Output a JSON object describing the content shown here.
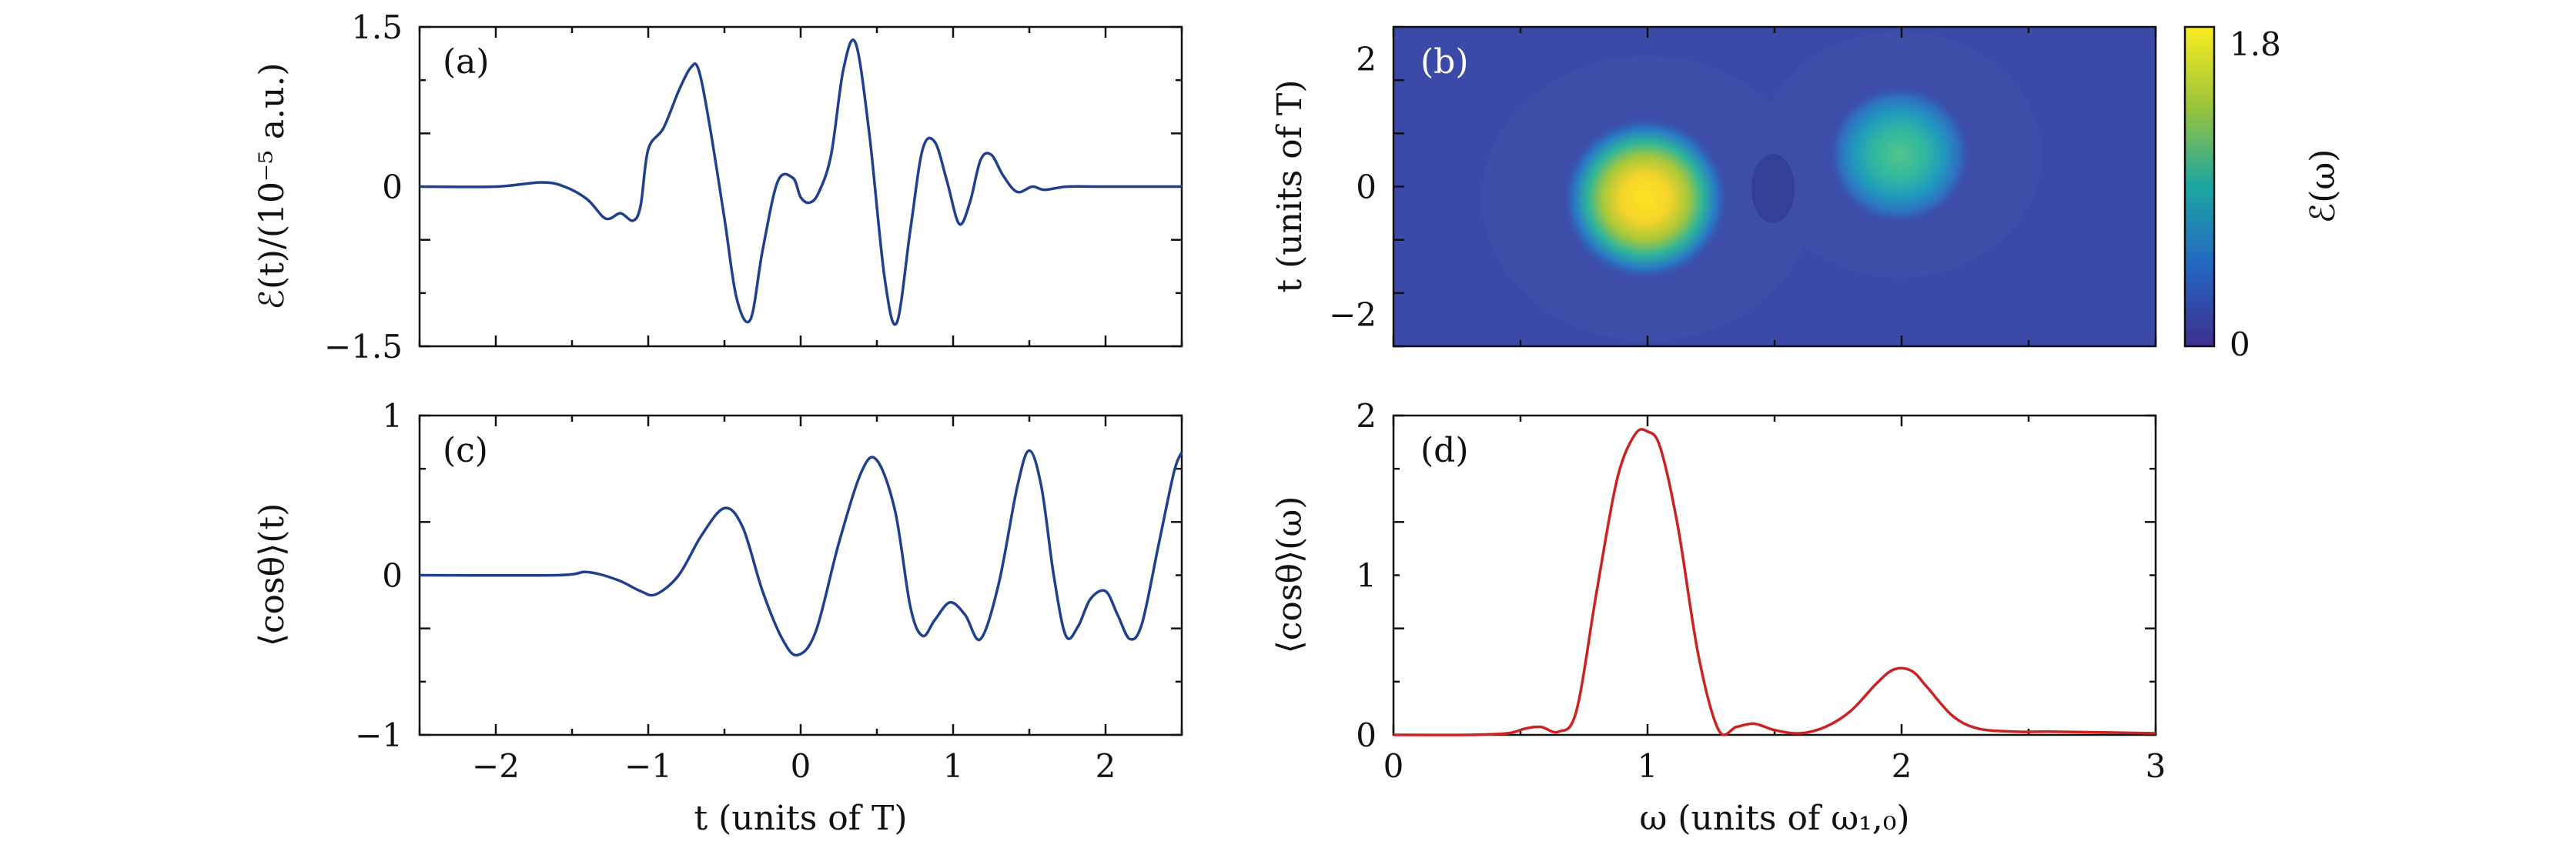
{
  "chart_data": [
    {
      "panel_label": "(a)",
      "type": "line",
      "xlabel": "",
      "ylabel": "ℰ(t)/(10⁻⁵ a.u.)",
      "xlim": [
        -2.5,
        2.5
      ],
      "ylim": [
        -1.5,
        1.5
      ],
      "yticks": [
        {
          "value": -1.5,
          "label": "−1.5"
        },
        {
          "value": 0,
          "label": "0"
        },
        {
          "value": 1.5,
          "label": "1.5"
        }
      ],
      "xticks": [],
      "color": "#1f3f8f",
      "series": [
        {
          "x": [
            -2.5,
            -2.0,
            -1.7,
            -1.55,
            -1.4,
            -1.3,
            -1.25,
            -1.18,
            -1.1,
            -1.05,
            -1.0,
            -0.9,
            -0.8,
            -0.72,
            -0.67,
            -0.6,
            -0.5,
            -0.42,
            -0.33,
            -0.25,
            -0.15,
            -0.05,
            0.0,
            0.06,
            0.12,
            0.2,
            0.28,
            0.36,
            0.45,
            0.55,
            0.63,
            0.72,
            0.8,
            0.88,
            0.96,
            1.04,
            1.11,
            1.18,
            1.25,
            1.33,
            1.42,
            1.52,
            1.6,
            1.75,
            2.0,
            2.5
          ],
          "y": [
            0.0,
            0.0,
            0.04,
            0.0,
            -0.12,
            -0.28,
            -0.3,
            -0.25,
            -0.32,
            -0.18,
            0.35,
            0.55,
            0.9,
            1.12,
            1.1,
            0.6,
            -0.3,
            -1.05,
            -1.25,
            -0.6,
            0.05,
            0.08,
            -0.1,
            -0.15,
            -0.05,
            0.3,
            1.1,
            1.35,
            0.5,
            -0.85,
            -1.28,
            -0.4,
            0.35,
            0.42,
            0.05,
            -0.35,
            -0.15,
            0.25,
            0.3,
            0.1,
            -0.05,
            0.0,
            -0.03,
            0.0,
            0.0,
            0.0
          ]
        }
      ]
    },
    {
      "panel_label": "(b)",
      "type": "heatmap",
      "xlabel": "",
      "ylabel": "t (units of T)",
      "xlim": [
        0,
        3
      ],
      "ylim": [
        -2.5,
        2.5
      ],
      "yticks": [
        {
          "value": -2,
          "label": "−2"
        },
        {
          "value": 0,
          "label": "0"
        },
        {
          "value": 2,
          "label": "2"
        }
      ],
      "colorbar": {
        "label": "ℰ(ω)",
        "min_label": "0",
        "max_label": "1.8",
        "min": 0,
        "max": 1.8
      },
      "blobs": [
        {
          "omega": 1.0,
          "t": -0.2,
          "peak": 1.7
        },
        {
          "omega": 2.0,
          "t": 0.4,
          "peak": 0.95
        }
      ]
    },
    {
      "panel_label": "(c)",
      "type": "line",
      "xlabel": "t (units of T)",
      "ylabel": "⟨cosθ⟩(t)",
      "xlim": [
        -2.5,
        2.5
      ],
      "ylim": [
        -1,
        1
      ],
      "yticks": [
        {
          "value": -1,
          "label": "−1"
        },
        {
          "value": 0,
          "label": "0"
        },
        {
          "value": 1,
          "label": "1"
        }
      ],
      "xticks": [
        {
          "value": -2,
          "label": "−2"
        },
        {
          "value": -1,
          "label": "−1"
        },
        {
          "value": 0,
          "label": "0"
        },
        {
          "value": 1,
          "label": "1"
        },
        {
          "value": 2,
          "label": "2"
        }
      ],
      "color": "#1f3f8f",
      "series": [
        {
          "x": [
            -2.5,
            -1.6,
            -1.4,
            -1.2,
            -1.05,
            -0.95,
            -0.8,
            -0.65,
            -0.5,
            -0.38,
            -0.25,
            -0.12,
            -0.02,
            0.1,
            0.25,
            0.4,
            0.5,
            0.62,
            0.72,
            0.8,
            0.88,
            0.98,
            1.08,
            1.18,
            1.3,
            1.42,
            1.5,
            1.58,
            1.66,
            1.74,
            1.82,
            1.9,
            2.0,
            2.08,
            2.16,
            2.24,
            2.35,
            2.45,
            2.5
          ],
          "y": [
            0.0,
            0.0,
            0.02,
            -0.03,
            -0.1,
            -0.12,
            0.0,
            0.25,
            0.42,
            0.3,
            -0.1,
            -0.4,
            -0.5,
            -0.35,
            0.2,
            0.65,
            0.72,
            0.4,
            -0.2,
            -0.38,
            -0.28,
            -0.17,
            -0.25,
            -0.4,
            -0.05,
            0.55,
            0.78,
            0.55,
            0.0,
            -0.38,
            -0.32,
            -0.15,
            -0.1,
            -0.25,
            -0.4,
            -0.3,
            0.2,
            0.65,
            0.77
          ]
        }
      ]
    },
    {
      "panel_label": "(d)",
      "type": "line",
      "xlabel": "ω (units of ω₁,₀)",
      "ylabel": "⟨cosθ⟩(ω)",
      "xlim": [
        0,
        3
      ],
      "ylim": [
        0,
        2
      ],
      "yticks": [
        {
          "value": 0,
          "label": "0"
        },
        {
          "value": 1,
          "label": "1"
        },
        {
          "value": 2,
          "label": "2"
        }
      ],
      "xticks": [
        {
          "value": 0,
          "label": "0"
        },
        {
          "value": 1,
          "label": "1"
        },
        {
          "value": 2,
          "label": "2"
        },
        {
          "value": 3,
          "label": "3"
        }
      ],
      "color": "#cc2222",
      "series": [
        {
          "x": [
            0.0,
            0.3,
            0.45,
            0.52,
            0.58,
            0.65,
            0.72,
            0.8,
            0.88,
            0.95,
            1.0,
            1.05,
            1.12,
            1.2,
            1.28,
            1.35,
            1.42,
            1.5,
            1.6,
            1.7,
            1.8,
            1.9,
            1.97,
            2.04,
            2.1,
            2.2,
            2.3,
            2.45,
            2.6,
            3.0
          ],
          "y": [
            0.0,
            0.0,
            0.01,
            0.04,
            0.05,
            0.02,
            0.15,
            0.9,
            1.6,
            1.88,
            1.9,
            1.8,
            1.3,
            0.5,
            0.03,
            0.05,
            0.07,
            0.03,
            0.01,
            0.05,
            0.15,
            0.32,
            0.41,
            0.4,
            0.3,
            0.12,
            0.04,
            0.02,
            0.02,
            0.01
          ]
        }
      ]
    }
  ]
}
